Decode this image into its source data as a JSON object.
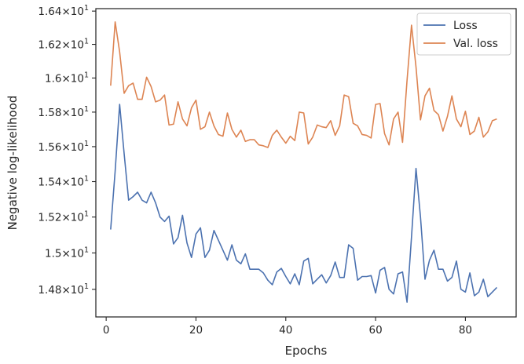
{
  "chart_data": {
    "type": "line",
    "xlabel": "Epochs",
    "ylabel": "Negative log-likelihood",
    "xlim": [
      -2.3,
      91.3
    ],
    "ylim": [
      14.65,
      16.415
    ],
    "yscale": "log",
    "xticks": [
      0,
      20,
      40,
      60,
      80
    ],
    "xtick_labels": [
      "0",
      "20",
      "40",
      "60",
      "80"
    ],
    "yticks": [
      14.8,
      15.0,
      15.2,
      15.4,
      15.6,
      15.8,
      16.0,
      16.2,
      16.4
    ],
    "ytick_labels": [
      {
        "mantissa": "1.48",
        "exp": "1"
      },
      {
        "mantissa": "1.5",
        "exp": "1"
      },
      {
        "mantissa": "1.52",
        "exp": "1"
      },
      {
        "mantissa": "1.54",
        "exp": "1"
      },
      {
        "mantissa": "1.56",
        "exp": "1"
      },
      {
        "mantissa": "1.58",
        "exp": "1"
      },
      {
        "mantissa": "1.6",
        "exp": "1"
      },
      {
        "mantissa": "1.62",
        "exp": "1"
      },
      {
        "mantissa": "1.64",
        "exp": "1"
      }
    ],
    "legend": "top-right",
    "grid": false,
    "x": [
      1,
      2,
      3,
      4,
      5,
      6,
      7,
      8,
      9,
      10,
      11,
      12,
      13,
      14,
      15,
      16,
      17,
      18,
      19,
      20,
      21,
      22,
      23,
      24,
      25,
      26,
      27,
      28,
      29,
      30,
      31,
      32,
      33,
      34,
      35,
      36,
      37,
      38,
      39,
      40,
      41,
      42,
      43,
      44,
      45,
      46,
      47,
      48,
      49,
      50,
      51,
      52,
      53,
      54,
      55,
      56,
      57,
      58,
      59,
      60,
      61,
      62,
      63,
      64,
      65,
      66,
      67,
      68,
      69,
      70,
      71,
      72,
      73,
      74,
      75,
      76,
      77,
      78,
      79,
      80,
      81,
      82,
      83,
      84,
      85,
      86,
      87
    ],
    "series": [
      {
        "name": "Loss",
        "color": "#4c72b0",
        "values": [
          15.13,
          15.46,
          15.845,
          15.56,
          15.295,
          15.315,
          15.34,
          15.295,
          15.28,
          15.34,
          15.28,
          15.2,
          15.175,
          15.205,
          15.05,
          15.085,
          15.21,
          15.055,
          14.975,
          15.105,
          15.14,
          14.975,
          15.015,
          15.125,
          15.07,
          15.015,
          14.96,
          15.045,
          14.96,
          14.94,
          14.995,
          14.91,
          14.91,
          14.91,
          14.89,
          14.85,
          14.825,
          14.895,
          14.915,
          14.87,
          14.83,
          14.885,
          14.825,
          14.955,
          14.97,
          14.83,
          14.855,
          14.88,
          14.835,
          14.875,
          14.95,
          14.865,
          14.865,
          15.045,
          15.025,
          14.85,
          14.87,
          14.87,
          14.875,
          14.78,
          14.905,
          14.92,
          14.8,
          14.775,
          14.885,
          14.895,
          14.73,
          15.09,
          15.475,
          15.2,
          14.855,
          14.96,
          15.015,
          14.91,
          14.91,
          14.845,
          14.865,
          14.955,
          14.8,
          14.785,
          14.89,
          14.765,
          14.785,
          14.855,
          14.76,
          14.785,
          14.81
        ]
      },
      {
        "name": "Val. loss",
        "color": "#dd8452",
        "values": [
          15.955,
          16.335,
          16.155,
          15.91,
          15.955,
          15.97,
          15.875,
          15.875,
          16.005,
          15.95,
          15.86,
          15.87,
          15.9,
          15.725,
          15.73,
          15.86,
          15.76,
          15.72,
          15.825,
          15.87,
          15.7,
          15.715,
          15.8,
          15.72,
          15.67,
          15.66,
          15.795,
          15.7,
          15.655,
          15.695,
          15.63,
          15.64,
          15.64,
          15.61,
          15.605,
          15.595,
          15.665,
          15.695,
          15.655,
          15.62,
          15.66,
          15.635,
          15.8,
          15.795,
          15.615,
          15.655,
          15.725,
          15.715,
          15.71,
          15.75,
          15.665,
          15.72,
          15.9,
          15.89,
          15.735,
          15.72,
          15.67,
          15.665,
          15.65,
          15.845,
          15.85,
          15.675,
          15.61,
          15.76,
          15.8,
          15.625,
          15.985,
          16.315,
          16.065,
          15.755,
          15.895,
          15.94,
          15.81,
          15.785,
          15.69,
          15.775,
          15.895,
          15.76,
          15.715,
          15.805,
          15.67,
          15.69,
          15.77,
          15.655,
          15.685,
          15.75,
          15.76
        ]
      }
    ]
  }
}
